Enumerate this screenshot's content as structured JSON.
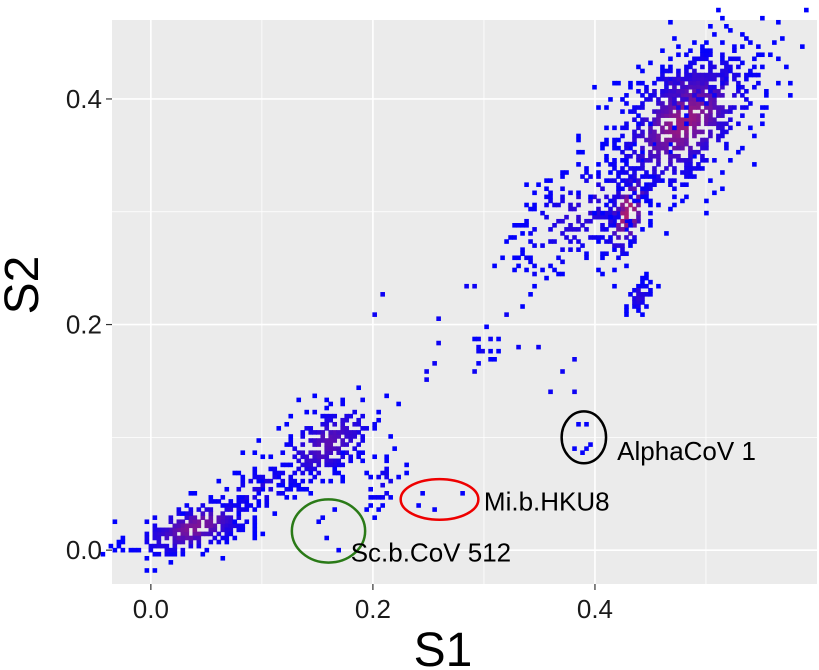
{
  "chart_data": {
    "type": "heatmap",
    "xlabel": "S1",
    "ylabel": "S2",
    "xlim": [
      -0.035,
      0.6
    ],
    "ylim": [
      -0.03,
      0.47
    ],
    "x_ticks": [
      0.0,
      0.2,
      0.4
    ],
    "x_tick_labels": [
      "0.0",
      "0.2",
      "0.4"
    ],
    "y_ticks": [
      0.0,
      0.2,
      0.4
    ],
    "y_tick_labels": [
      "0.0",
      "0.2",
      "0.4"
    ],
    "grid": true,
    "panel_background": "#ebebeb",
    "grid_color": "#ffffff",
    "color_low": "#0000ff",
    "color_high": "#ff2a2a",
    "clusters": [
      {
        "cx": 0.04,
        "cy": 0.02,
        "sx": 0.03,
        "sy": 0.012,
        "n": 260,
        "density": 0.5
      },
      {
        "cx": 0.16,
        "cy": 0.095,
        "sx": 0.025,
        "sy": 0.018,
        "n": 230,
        "density": 0.35
      },
      {
        "cx": 0.1,
        "cy": 0.055,
        "sx": 0.025,
        "sy": 0.012,
        "n": 90,
        "density": 0.15
      },
      {
        "cx": 0.21,
        "cy": 0.06,
        "sx": 0.012,
        "sy": 0.012,
        "n": 30,
        "density": 0.1
      },
      {
        "cx": 0.3,
        "cy": 0.18,
        "sx": 0.006,
        "sy": 0.01,
        "n": 14,
        "density": 0.1
      },
      {
        "cx": 0.39,
        "cy": 0.3,
        "sx": 0.035,
        "sy": 0.025,
        "n": 200,
        "density": 0.2
      },
      {
        "cx": 0.43,
        "cy": 0.3,
        "sx": 0.012,
        "sy": 0.02,
        "n": 120,
        "density": 0.7
      },
      {
        "cx": 0.44,
        "cy": 0.225,
        "sx": 0.006,
        "sy": 0.007,
        "n": 40,
        "density": 0.2
      },
      {
        "cx": 0.48,
        "cy": 0.38,
        "sx": 0.035,
        "sy": 0.03,
        "n": 650,
        "density": 0.6
      },
      {
        "cx": 0.48,
        "cy": 0.41,
        "sx": 0.03,
        "sy": 0.015,
        "n": 150,
        "density": 0.3
      }
    ],
    "scatter_points": [
      [
        0.2,
        0.21
      ],
      [
        0.21,
        0.225
      ],
      [
        0.26,
        0.205
      ],
      [
        0.285,
        0.235
      ],
      [
        0.29,
        0.235
      ],
      [
        0.26,
        0.185
      ],
      [
        0.29,
        0.16
      ],
      [
        0.25,
        0.16
      ],
      [
        0.33,
        0.18
      ],
      [
        0.35,
        0.18
      ],
      [
        0.37,
        0.16
      ],
      [
        0.38,
        0.14
      ],
      [
        0.36,
        0.14
      ],
      [
        0.38,
        0.17
      ],
      [
        0.32,
        0.21
      ],
      [
        0.345,
        0.245
      ],
      [
        0.37,
        0.255
      ],
      [
        0.34,
        0.26
      ],
      [
        0.25,
        0.15
      ],
      [
        0.255,
        0.165
      ]
    ],
    "annotations": [
      {
        "label": "AlphaCoV 1",
        "ellipse": {
          "cx": 0.39,
          "cy": 0.1,
          "rx": 0.02,
          "ry": 0.023
        },
        "ellipse_color": "#000000",
        "label_x": 0.42,
        "label_y": 0.08,
        "points": [
          [
            0.385,
            0.11
          ],
          [
            0.393,
            0.11
          ],
          [
            0.383,
            0.09
          ],
          [
            0.393,
            0.09
          ],
          [
            0.388,
            0.085
          ],
          [
            0.395,
            0.095
          ]
        ]
      },
      {
        "label": "Mi.b.HKU8",
        "ellipse": {
          "cx": 0.26,
          "cy": 0.045,
          "rx": 0.035,
          "ry": 0.018
        },
        "ellipse_color": "#ee0000",
        "label_x": 0.3,
        "label_y": 0.035,
        "points": [
          [
            0.24,
            0.04
          ],
          [
            0.255,
            0.035
          ],
          [
            0.28,
            0.05
          ],
          [
            0.245,
            0.05
          ]
        ]
      },
      {
        "label": "Sc.b.CoV 512",
        "ellipse": {
          "cx": 0.16,
          "cy": 0.017,
          "rx": 0.033,
          "ry": 0.028
        },
        "ellipse_color": "#2a7a17",
        "label_x": 0.18,
        "label_y": -0.01,
        "points": [
          [
            0.15,
            0.025
          ],
          [
            0.165,
            0.035
          ],
          [
            0.16,
            0.01
          ],
          [
            0.17,
            0.0
          ],
          [
            0.155,
            0.03
          ]
        ]
      }
    ]
  }
}
